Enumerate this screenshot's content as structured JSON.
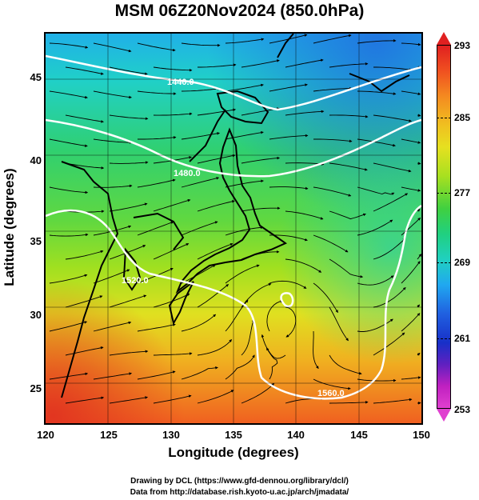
{
  "title": "MSM 06Z20Nov2024 (850.0hPa)",
  "x_axis": {
    "label": "Longitude (degrees)",
    "range": [
      120,
      150
    ],
    "ticks": [
      "120",
      "125",
      "130",
      "135",
      "140",
      "145",
      "150"
    ]
  },
  "y_axis": {
    "label": "Latitude  (degrees)",
    "range": [
      22.4,
      48
    ],
    "ticks": [
      "25",
      "30",
      "35",
      "40",
      "45"
    ]
  },
  "colorbar": {
    "range": [
      253,
      293
    ],
    "ticks": [
      "293",
      "285",
      "277",
      "269",
      "261",
      "253"
    ]
  },
  "contours": [
    {
      "label": "1440.0"
    },
    {
      "label": "1480.0"
    },
    {
      "label": "1520.0"
    },
    {
      "label": "1560.0"
    }
  ],
  "credits": {
    "line1": "Drawing by DCL (https://www.gfd-dennou.org/library/dcl/)",
    "line2": "Data from http://database.rish.kyoto-u.ac.jp/arch/jmadata/"
  }
}
